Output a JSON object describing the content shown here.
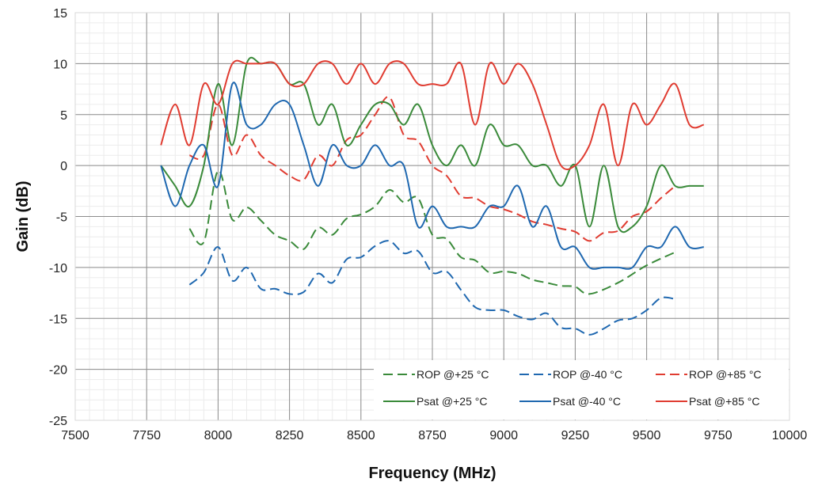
{
  "chart_data": {
    "type": "line",
    "title": "",
    "xlabel": "Frequency (MHz)",
    "ylabel": "Gain (dB)",
    "xlim": [
      7500,
      10000
    ],
    "ylim": [
      -25,
      15
    ],
    "xticks": [
      "7500",
      "7750",
      "8000",
      "8250",
      "8500",
      "8750",
      "9000",
      "9250",
      "9500",
      "9750",
      "10000"
    ],
    "yticks": [
      "15",
      "10",
      "5",
      "0",
      "-5",
      "-10",
      "-15",
      "-20",
      "-25"
    ],
    "grid": true,
    "legend_position": "bottom-right",
    "series": [
      {
        "name": "ROP @+25 °C",
        "color": "#3a8a3a",
        "dash": true,
        "points": [
          [
            7900,
            -6.2
          ],
          [
            7950,
            -7.5
          ],
          [
            8000,
            -0.5
          ],
          [
            8050,
            -5.3
          ],
          [
            8100,
            -4.1
          ],
          [
            8150,
            -5.4
          ],
          [
            8200,
            -6.8
          ],
          [
            8250,
            -7.4
          ],
          [
            8300,
            -8.2
          ],
          [
            8350,
            -6.1
          ],
          [
            8400,
            -6.8
          ],
          [
            8450,
            -5.2
          ],
          [
            8500,
            -4.8
          ],
          [
            8550,
            -4.0
          ],
          [
            8600,
            -2.4
          ],
          [
            8650,
            -3.6
          ],
          [
            8700,
            -3.2
          ],
          [
            8750,
            -6.8
          ],
          [
            8800,
            -7.2
          ],
          [
            8850,
            -9.0
          ],
          [
            8900,
            -9.3
          ],
          [
            8950,
            -10.5
          ],
          [
            9000,
            -10.4
          ],
          [
            9050,
            -10.6
          ],
          [
            9100,
            -11.2
          ],
          [
            9150,
            -11.5
          ],
          [
            9200,
            -11.8
          ],
          [
            9250,
            -11.9
          ],
          [
            9300,
            -12.6
          ],
          [
            9400,
            -11.5
          ],
          [
            9500,
            -9.8
          ],
          [
            9600,
            -8.5
          ]
        ]
      },
      {
        "name": "ROP @-40 °C",
        "color": "#1f68b0",
        "dash": true,
        "points": [
          [
            7900,
            -11.7
          ],
          [
            7950,
            -10.5
          ],
          [
            8000,
            -8.0
          ],
          [
            8050,
            -11.3
          ],
          [
            8100,
            -10.0
          ],
          [
            8150,
            -12.1
          ],
          [
            8200,
            -12.1
          ],
          [
            8250,
            -12.6
          ],
          [
            8300,
            -12.4
          ],
          [
            8350,
            -10.6
          ],
          [
            8400,
            -11.5
          ],
          [
            8450,
            -9.2
          ],
          [
            8500,
            -9.0
          ],
          [
            8550,
            -7.9
          ],
          [
            8600,
            -7.4
          ],
          [
            8650,
            -8.6
          ],
          [
            8700,
            -8.4
          ],
          [
            8750,
            -10.5
          ],
          [
            8800,
            -10.4
          ],
          [
            8850,
            -12.2
          ],
          [
            8900,
            -13.9
          ],
          [
            8950,
            -14.2
          ],
          [
            9000,
            -14.2
          ],
          [
            9050,
            -14.8
          ],
          [
            9100,
            -15.1
          ],
          [
            9150,
            -14.5
          ],
          [
            9200,
            -15.9
          ],
          [
            9250,
            -16.0
          ],
          [
            9300,
            -16.6
          ],
          [
            9350,
            -16.0
          ],
          [
            9400,
            -15.2
          ],
          [
            9450,
            -15.0
          ],
          [
            9500,
            -14.2
          ],
          [
            9550,
            -13.0
          ],
          [
            9600,
            -13.1
          ]
        ]
      },
      {
        "name": "ROP @+85 °C",
        "color": "#e03c31",
        "dash": true,
        "points": [
          [
            7900,
            1.0
          ],
          [
            7950,
            1.0
          ],
          [
            8000,
            6.0
          ],
          [
            8050,
            1.0
          ],
          [
            8100,
            3.0
          ],
          [
            8150,
            1.0
          ],
          [
            8200,
            0.0
          ],
          [
            8250,
            -1.0
          ],
          [
            8300,
            -1.4
          ],
          [
            8350,
            1.0
          ],
          [
            8400,
            0.0
          ],
          [
            8450,
            2.5
          ],
          [
            8500,
            3.0
          ],
          [
            8550,
            5.0
          ],
          [
            8600,
            6.7
          ],
          [
            8650,
            3.0
          ],
          [
            8700,
            2.4
          ],
          [
            8750,
            0.0
          ],
          [
            8800,
            -1.0
          ],
          [
            8850,
            -3.0
          ],
          [
            8900,
            -3.2
          ],
          [
            8950,
            -4.0
          ],
          [
            9000,
            -4.3
          ],
          [
            9050,
            -4.8
          ],
          [
            9100,
            -5.5
          ],
          [
            9150,
            -5.8
          ],
          [
            9200,
            -6.2
          ],
          [
            9250,
            -6.5
          ],
          [
            9300,
            -7.4
          ],
          [
            9350,
            -6.6
          ],
          [
            9400,
            -6.4
          ],
          [
            9450,
            -5.0
          ],
          [
            9500,
            -4.5
          ],
          [
            9550,
            -3.2
          ],
          [
            9600,
            -2.0
          ]
        ]
      },
      {
        "name": "Psat @+25 °C",
        "color": "#3a8a3a",
        "dash": false,
        "points": [
          [
            7800,
            0.0
          ],
          [
            7850,
            -2.0
          ],
          [
            7900,
            -4.0
          ],
          [
            7950,
            0.0
          ],
          [
            8000,
            8.0
          ],
          [
            8050,
            2.0
          ],
          [
            8100,
            10.0
          ],
          [
            8150,
            10.0
          ],
          [
            8200,
            10.0
          ],
          [
            8250,
            8.0
          ],
          [
            8300,
            8.0
          ],
          [
            8350,
            4.0
          ],
          [
            8400,
            6.0
          ],
          [
            8450,
            2.0
          ],
          [
            8500,
            4.0
          ],
          [
            8550,
            6.0
          ],
          [
            8600,
            6.0
          ],
          [
            8650,
            4.0
          ],
          [
            8700,
            6.0
          ],
          [
            8750,
            2.0
          ],
          [
            8800,
            0.0
          ],
          [
            8850,
            2.0
          ],
          [
            8900,
            0.0
          ],
          [
            8950,
            4.0
          ],
          [
            9000,
            2.0
          ],
          [
            9050,
            2.0
          ],
          [
            9100,
            0.0
          ],
          [
            9150,
            0.0
          ],
          [
            9200,
            -2.0
          ],
          [
            9250,
            0.0
          ],
          [
            9300,
            -6.0
          ],
          [
            9350,
            0.0
          ],
          [
            9400,
            -6.0
          ],
          [
            9450,
            -6.0
          ],
          [
            9500,
            -4.0
          ],
          [
            9550,
            0.0
          ],
          [
            9600,
            -2.0
          ],
          [
            9650,
            -2.0
          ],
          [
            9700,
            -2.0
          ]
        ]
      },
      {
        "name": "Psat @-40 °C",
        "color": "#1f68b0",
        "dash": false,
        "points": [
          [
            7800,
            0.0
          ],
          [
            7850,
            -4.0
          ],
          [
            7900,
            0.0
          ],
          [
            7950,
            2.0
          ],
          [
            8000,
            -2.0
          ],
          [
            8050,
            8.0
          ],
          [
            8100,
            4.0
          ],
          [
            8150,
            4.0
          ],
          [
            8200,
            6.0
          ],
          [
            8250,
            6.0
          ],
          [
            8300,
            2.0
          ],
          [
            8350,
            -2.0
          ],
          [
            8400,
            2.0
          ],
          [
            8450,
            0.0
          ],
          [
            8500,
            0.0
          ],
          [
            8550,
            2.0
          ],
          [
            8600,
            0.0
          ],
          [
            8650,
            0.0
          ],
          [
            8700,
            -6.0
          ],
          [
            8750,
            -4.0
          ],
          [
            8800,
            -6.0
          ],
          [
            8850,
            -6.0
          ],
          [
            8900,
            -6.0
          ],
          [
            8950,
            -4.0
          ],
          [
            9000,
            -4.0
          ],
          [
            9050,
            -2.0
          ],
          [
            9100,
            -6.0
          ],
          [
            9150,
            -4.0
          ],
          [
            9200,
            -8.0
          ],
          [
            9250,
            -8.0
          ],
          [
            9300,
            -10.0
          ],
          [
            9350,
            -10.0
          ],
          [
            9400,
            -10.0
          ],
          [
            9450,
            -10.0
          ],
          [
            9500,
            -8.0
          ],
          [
            9550,
            -8.0
          ],
          [
            9600,
            -6.0
          ],
          [
            9650,
            -8.0
          ],
          [
            9700,
            -8.0
          ]
        ]
      },
      {
        "name": "Psat @+85 °C",
        "color": "#e03c31",
        "dash": false,
        "points": [
          [
            7800,
            2.0
          ],
          [
            7850,
            6.0
          ],
          [
            7900,
            2.0
          ],
          [
            7950,
            8.0
          ],
          [
            8000,
            6.0
          ],
          [
            8050,
            10.0
          ],
          [
            8100,
            10.0
          ],
          [
            8150,
            10.0
          ],
          [
            8200,
            10.0
          ],
          [
            8250,
            8.0
          ],
          [
            8300,
            8.0
          ],
          [
            8350,
            10.0
          ],
          [
            8400,
            10.0
          ],
          [
            8450,
            8.0
          ],
          [
            8500,
            10.0
          ],
          [
            8550,
            8.0
          ],
          [
            8600,
            10.0
          ],
          [
            8650,
            10.0
          ],
          [
            8700,
            8.0
          ],
          [
            8750,
            8.0
          ],
          [
            8800,
            8.0
          ],
          [
            8850,
            10.0
          ],
          [
            8900,
            4.0
          ],
          [
            8950,
            10.0
          ],
          [
            9000,
            8.0
          ],
          [
            9050,
            10.0
          ],
          [
            9100,
            8.0
          ],
          [
            9150,
            4.0
          ],
          [
            9200,
            0.0
          ],
          [
            9250,
            0.0
          ],
          [
            9300,
            2.0
          ],
          [
            9350,
            6.0
          ],
          [
            9400,
            0.0
          ],
          [
            9450,
            6.0
          ],
          [
            9500,
            4.0
          ],
          [
            9550,
            6.0
          ],
          [
            9600,
            8.0
          ],
          [
            9650,
            4.0
          ],
          [
            9700,
            4.0
          ]
        ]
      }
    ]
  }
}
